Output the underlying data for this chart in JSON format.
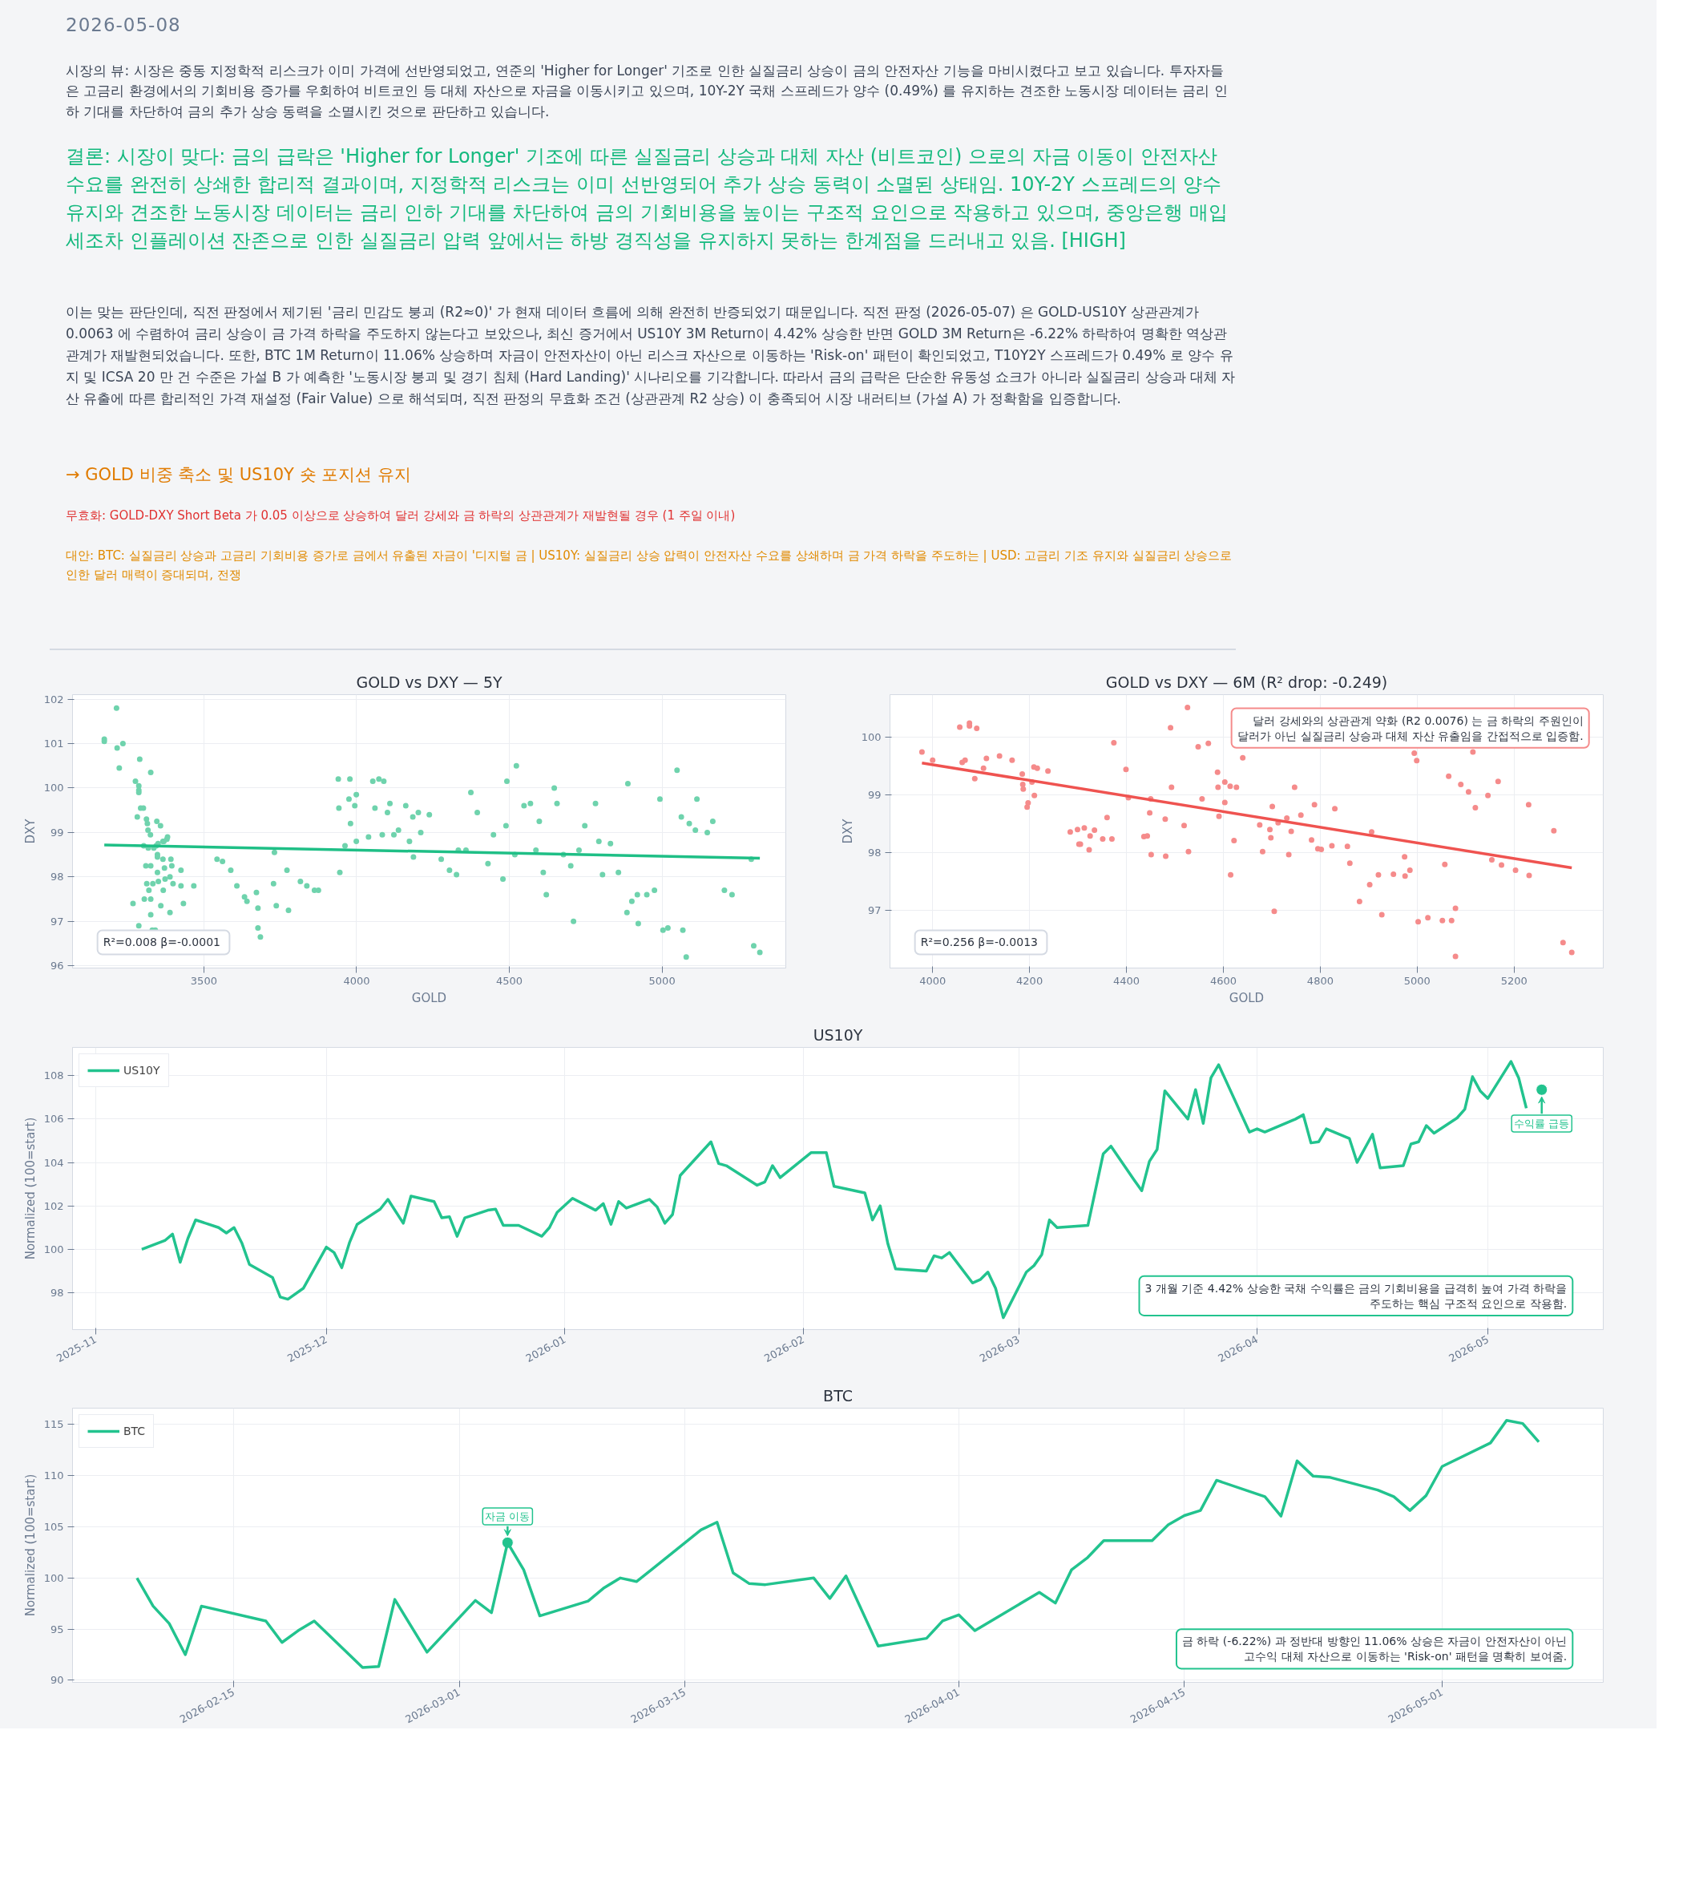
{
  "chart_data": [
    {
      "type": "other",
      "title": "2026-05-08",
      "annotations": [
        "시장의 뷰: 시장은 중동 지정학적 리스크가 이미 가격에 선반영되었고, 연준의 'Higher for Longer' 기조로 인한 실질금리 상승이 금의 안전자산 기능을 마비시켰다고 보고 있습니다. 투자자들은 고금리 환경에서의 기회비용 증가를 우회하여 비트코인 등 대체 자산으로 자금을 이동시키고 있으며, 10Y-2Y 국채 스프레드가 양수 (0.49%) 를 유지하는 견조한 노동시장 데이터는 금리 인하 기대를 차단하여 금의 추가 상승 동력을 소멸시킨 것으로 판단하고 있습니다.",
        "결론: 시장이 맞다: 금의 급락은 'Higher for Longer' 기조에 따른 실질금리 상승과 대체 자산 (비트코인) 으로의 자금 이동이 안전자산 수요를 완전히 상쇄한 합리적 결과이며, 지정학적 리스크는 이미 선반영되어 추가 상승 동력이 소멸된 상태임. 10Y-2Y 스프레드의 양수 유지와 견조한 노동시장 데이터는 금리 인하 기대를 차단하여 금의 기회비용을 높이는 구조적 요인으로 작용하고 있으며, 중앙은행 매입세조차 인플레이션 잔존으로 인한 실질금리 압력 앞에서는 하방 경직성을 유지하지 못하는 한계점을 드러내고 있음.  [HIGH]",
        "이는 맞는 판단인데, 직전 판정에서 제기된 '금리 민감도 붕괴 (R2≈0)' 가 현재 데이터 흐름에 의해 완전히 반증되었기 때문입니다. 직전 판정 (2026-05-07) 은 GOLD-US10Y 상관관계가 0.0063 에 수렴하여 금리 상승이 금 가격 하락을 주도하지 않는다고 보았으나, 최신 증거에서 US10Y 3M Return이 4.42% 상승한 반면 GOLD 3M Return은 -6.22% 하락하여 명확한 역상관 관계가 재발현되었습니다. 또한, BTC 1M Return이 11.06% 상승하며 자금이 안전자산이 아닌 리스크 자산으로 이동하는 'Risk-on' 패턴이 확인되었고, T10Y2Y 스프레드가 0.49% 로 양수 유지 및 ICSA 20 만 건 수준은 가설 B 가 예측한 '노동시장 붕괴 및 경기 침체 (Hard Landing)' 시나리오를 기각합니다. 따라서 금의 급락은 단순한 유동성 쇼크가 아니라 실질금리 상승과 대체 자산 유출에 따른 합리적인 가격 재설정 (Fair Value) 으로 해석되며, 직전 판정의 무효화 조건 (상관관계 R2 상승) 이 충족되어 시장 내러티브 (가설 A) 가 정확함을 입증합니다.",
        "→ GOLD 비중 축소 및 US10Y 숏 포지션 유지",
        "무효화: GOLD-DXY Short Beta 가 0.05 이상으로 상승하여 달러 강세와 금 하락의 상관관계가 재발현될 경우 (1 주일 이내)",
        "대안: BTC: 실질금리 상승과 고금리 기회비용 증가로 금에서 유출된 자금이 '디지털 금 | US10Y: 실질금리 상승 압력이 안전자산 수요를 상쇄하며 금 가격 하락을 주도하는  | USD: 고금리 기조 유지와 실질금리 상승으로 인한 달러 매력이 증대되며, 전쟁"
      ]
    },
    {
      "type": "scatter",
      "title": "GOLD vs DXY — 5Y",
      "xlabel": "GOLD",
      "ylabel": "DXY",
      "xlim": [
        3070,
        5405
      ],
      "ylim": [
        95.95,
        102.1
      ],
      "xticks": [
        3500,
        4000,
        4500,
        5000
      ],
      "yticks": [
        96,
        97,
        98,
        99,
        100,
        101,
        102
      ],
      "grid": true,
      "annotations": [
        "R²=0.008  β=-0.0001"
      ],
      "series": [
        {
          "type": "scatter",
          "marker": "circle",
          "color": "#6fd3ad",
          "x": [
            3174,
            3174,
            3214,
            3216,
            3223,
            3235,
            3268,
            3276,
            3282,
            3287,
            3287,
            3287,
            3287,
            3290,
            3293,
            3302,
            3303,
            3305,
            3310,
            3312,
            3313,
            3315,
            3317,
            3318,
            3320,
            3325,
            3326,
            3326,
            3326,
            3326,
            3331,
            3333,
            3336,
            3341,
            3344,
            3346,
            3348,
            3348,
            3348,
            3350,
            3351,
            3358,
            3359,
            3366,
            3366,
            3367,
            3369,
            3371,
            3373,
            3379,
            3381,
            3389,
            3389,
            3392,
            3395,
            3399,
            3425,
            3425,
            3433,
            3467,
            3543,
            3561,
            3588,
            3608,
            3633,
            3641,
            3672,
            3677,
            3677,
            3685,
            3728,
            3731,
            3737,
            3772,
            3777,
            3816,
            3837,
            3862,
            3875,
            3940,
            3942,
            3945,
            3962,
            3975,
            3978,
            3980,
            3994,
            3999,
            3999,
            4039,
            4053,
            4060,
            4073,
            4084,
            4089,
            4101,
            4109,
            4122,
            4137,
            4161,
            4173,
            4184,
            4186,
            4202,
            4210,
            4238,
            4277,
            4304,
            4327,
            4333,
            4358,
            4374,
            4395,
            4430,
            4448,
            4479,
            4489,
            4492,
            4518,
            4523,
            4548,
            4569,
            4587,
            4598,
            4611,
            4621,
            4647,
            4656,
            4677,
            4701,
            4710,
            4728,
            4747,
            4782,
            4793,
            4805,
            4831,
            4857,
            4885,
            4888,
            4901,
            4919,
            4922,
            4950,
            4975,
            4993,
            5003,
            5019,
            5049,
            5063,
            5068,
            5079,
            5089,
            5109,
            5114,
            5148,
            5166,
            5204,
            5229,
            5292,
            5300,
            5320
          ],
          "values": [
            101.1,
            101.05,
            101.8,
            100.9,
            100.45,
            101.0,
            97.4,
            100.15,
            99.35,
            100.05,
            99.95,
            99.9,
            96.9,
            100.65,
            99.55,
            99.55,
            98.7,
            97.5,
            98.25,
            99.3,
            97.85,
            99.2,
            99.05,
            98.65,
            97.7,
            98.95,
            100.35,
            98.25,
            97.5,
            97.15,
            96.8,
            97.85,
            98.65,
            96.8,
            98.7,
            99.25,
            98.5,
            98.45,
            98.1,
            98.75,
            97.9,
            99.15,
            97.35,
            98.8,
            98.4,
            97.7,
            98.8,
            98.2,
            97.95,
            98.85,
            98.9,
            98.0,
            97.2,
            98.4,
            98.25,
            97.85,
            98.15,
            97.8,
            97.4,
            97.8,
            98.4,
            98.35,
            98.15,
            97.8,
            97.55,
            97.45,
            97.65,
            96.85,
            97.3,
            96.65,
            97.85,
            98.55,
            97.35,
            98.15,
            97.25,
            97.9,
            97.8,
            97.7,
            97.7,
            100.2,
            99.55,
            98.1,
            98.7,
            99.75,
            100.2,
            99.2,
            99.6,
            98.8,
            99.85,
            98.9,
            100.15,
            99.55,
            100.2,
            98.95,
            100.15,
            99.45,
            99.65,
            98.95,
            99.05,
            99.6,
            98.8,
            99.35,
            98.45,
            99.45,
            99.0,
            99.4,
            98.4,
            98.15,
            98.05,
            98.6,
            98.6,
            99.9,
            99.45,
            98.3,
            98.95,
            97.95,
            99.15,
            100.15,
            98.5,
            100.5,
            99.6,
            99.65,
            98.6,
            99.25,
            98.1,
            97.6,
            100.0,
            99.65,
            98.5,
            98.25,
            97.0,
            98.6,
            99.15,
            99.65,
            98.8,
            98.05,
            98.75,
            98.1,
            97.2,
            100.1,
            97.45,
            97.6,
            96.95,
            97.6,
            97.7,
            99.75,
            96.8,
            96.85,
            100.4,
            99.35,
            96.8,
            96.2,
            99.2,
            99.05,
            99.75,
            99.0,
            99.25,
            97.7,
            97.6,
            98.4,
            96.45,
            96.3
          ]
        },
        {
          "type": "line",
          "color": "#1fbf86",
          "x": [
            3174,
            5320
          ],
          "values": [
            98.72,
            98.42
          ]
        }
      ]
    },
    {
      "type": "scatter",
      "title": "GOLD vs DXY — 6M (R² drop: -0.249)",
      "xlabel": "GOLD",
      "ylabel": "DXY",
      "xlim": [
        3912,
        5384
      ],
      "ylim": [
        96.01,
        100.73
      ],
      "xticks": [
        4000,
        4200,
        4400,
        4600,
        4800,
        5000,
        5200
      ],
      "yticks": [
        97,
        98,
        99,
        100
      ],
      "grid": true,
      "annotations": [
        "R²=0.256  β=-0.0013",
        "달러 강세와의 상관관계 약화 (R2 0.0076) 는 금 하락의 주원인이\n달러가 아닌 실질금리 상승과 대체 자산 유출임을 간접적으로 입증함."
      ],
      "series": [
        {
          "type": "scatter",
          "marker": "circle",
          "color": "#f58b8b",
          "x": [
            3978,
            4000,
            4056,
            4061,
            4067,
            4076,
            4076,
            4087,
            4091,
            4105,
            4111,
            4138,
            4164,
            4185,
            4186,
            4187,
            4195,
            4197,
            4205,
            4209,
            4210,
            4216,
            4238,
            4284,
            4299,
            4302,
            4305,
            4313,
            4323,
            4325,
            4334,
            4351,
            4360,
            4370,
            4374,
            4399,
            4404,
            4436,
            4443,
            4448,
            4450,
            4451,
            4480,
            4481,
            4491,
            4493,
            4519,
            4526,
            4528,
            4548,
            4556,
            4569,
            4588,
            4589,
            4591,
            4603,
            4603,
            4614,
            4615,
            4622,
            4627,
            4640,
            4675,
            4681,
            4696,
            4698,
            4701,
            4705,
            4713,
            4731,
            4735,
            4740,
            4747,
            4760,
            4782,
            4788,
            4795,
            4802,
            4824,
            4830,
            4856,
            4861,
            4881,
            4902,
            4906,
            4920,
            4927,
            4951,
            4974,
            4975,
            4985,
            4994,
            4999,
            5002,
            5022,
            5052,
            5057,
            5065,
            5071,
            5079,
            5079,
            5090,
            5106,
            5115,
            5120,
            5146,
            5154,
            5167,
            5174,
            5203,
            5230,
            5231,
            5282,
            5301,
            5319
          ],
          "values": [
            99.74,
            99.6,
            100.17,
            99.56,
            99.6,
            100.24,
            100.19,
            99.28,
            100.15,
            99.46,
            99.63,
            99.67,
            99.6,
            99.36,
            99.18,
            99.1,
            98.79,
            98.86,
            99.22,
            99.48,
            98.99,
            99.46,
            99.41,
            98.36,
            98.4,
            98.15,
            98.15,
            98.43,
            98.05,
            98.29,
            98.39,
            98.24,
            98.61,
            98.24,
            99.9,
            99.44,
            98.95,
            98.28,
            98.29,
            98.69,
            98.93,
            97.97,
            98.58,
            97.94,
            100.16,
            99.13,
            98.47,
            100.51,
            98.02,
            99.83,
            98.93,
            99.89,
            99.39,
            99.13,
            98.63,
            98.87,
            99.22,
            99.15,
            97.62,
            98.21,
            99.13,
            99.64,
            98.48,
            98.02,
            98.4,
            98.26,
            98.8,
            96.99,
            98.52,
            98.6,
            97.97,
            98.37,
            99.13,
            98.65,
            98.22,
            98.83,
            98.07,
            98.06,
            98.12,
            98.76,
            98.11,
            97.82,
            97.16,
            97.45,
            98.36,
            97.62,
            96.93,
            97.63,
            97.93,
            97.6,
            97.7,
            99.72,
            99.59,
            96.81,
            96.88,
            96.83,
            97.8,
            99.32,
            96.83,
            97.04,
            96.21,
            99.18,
            99.05,
            99.74,
            98.78,
            98.99,
            97.88,
            99.23,
            97.79,
            97.7,
            98.83,
            97.61,
            98.38,
            96.45,
            96.28
          ]
        },
        {
          "type": "line",
          "color": "#ef5350",
          "x": [
            3978,
            5319
          ],
          "values": [
            99.55,
            97.74
          ]
        }
      ]
    },
    {
      "type": "line",
      "title": "US10Y",
      "ylabel": "Normalized (100=start)",
      "xlim": [
        "2025-10-29",
        "2026-05-16"
      ],
      "ylim": [
        96.3,
        109.3
      ],
      "xticks": [
        {
          "value": "2025-11-01",
          "label": "2025-11"
        },
        {
          "value": "2025-12-01",
          "label": "2025-12"
        },
        {
          "value": "2026-01-01",
          "label": "2026-01"
        },
        {
          "value": "2026-02-01",
          "label": "2026-02"
        },
        {
          "value": "2026-03-01",
          "label": "2026-03"
        },
        {
          "value": "2026-04-01",
          "label": "2026-04"
        },
        {
          "value": "2026-05-01",
          "label": "2026-05"
        }
      ],
      "yticks": [
        98,
        100,
        102,
        104,
        106,
        108
      ],
      "grid": true,
      "legend": "top left",
      "annotations": [
        "3 개월 기준 4.42% 상승한 국채 수익률은 금의 기회비용을 급격히 높여 가격 하락을\n주도하는 핵심 구조적 요인으로 작용함.",
        {
          "text": "수익률 급등",
          "x": "2026-05-08",
          "y": 107.35
        }
      ],
      "series": [
        {
          "type": "scatter",
          "marker": "circle",
          "color": "#22c38e",
          "x": [
            "2026-05-08"
          ],
          "values": [
            107.35
          ]
        },
        {
          "name": "US10Y",
          "color": "#22c38e",
          "x": [
            "2025-11-07",
            "2025-11-10",
            "2025-11-11",
            "2025-11-12",
            "2025-11-13",
            "2025-11-14",
            "2025-11-17",
            "2025-11-18",
            "2025-11-19",
            "2025-11-20",
            "2025-11-21",
            "2025-11-24",
            "2025-11-25",
            "2025-11-26",
            "2025-11-28",
            "2025-12-01",
            "2025-12-02",
            "2025-12-03",
            "2025-12-04",
            "2025-12-05",
            "2025-12-08",
            "2025-12-09",
            "2025-12-11",
            "2025-12-12",
            "2025-12-15",
            "2025-12-16",
            "2025-12-17",
            "2025-12-18",
            "2025-12-19",
            "2025-12-22",
            "2025-12-23",
            "2025-12-24",
            "2025-12-26",
            "2025-12-29",
            "2025-12-30",
            "2025-12-31",
            "2026-01-02",
            "2026-01-05",
            "2026-01-06",
            "2026-01-07",
            "2026-01-08",
            "2026-01-09",
            "2026-01-12",
            "2026-01-13",
            "2026-01-14",
            "2026-01-15",
            "2026-01-16",
            "2026-01-20",
            "2026-01-21",
            "2026-01-22",
            "2026-01-26",
            "2026-01-27",
            "2026-01-28",
            "2026-01-29",
            "2026-02-02",
            "2026-02-04",
            "2026-02-05",
            "2026-02-09",
            "2026-02-10",
            "2026-02-11",
            "2026-02-12",
            "2026-02-13",
            "2026-02-17",
            "2026-02-18",
            "2026-02-19",
            "2026-02-20",
            "2026-02-23",
            "2026-02-24",
            "2026-02-25",
            "2026-02-26",
            "2026-02-27",
            "2026-03-02",
            "2026-03-03",
            "2026-03-04",
            "2026-03-05",
            "2026-03-06",
            "2026-03-10",
            "2026-03-12",
            "2026-03-13",
            "2026-03-16",
            "2026-03-17",
            "2026-03-18",
            "2026-03-19",
            "2026-03-20",
            "2026-03-23",
            "2026-03-24",
            "2026-03-25",
            "2026-03-26",
            "2026-03-27",
            "2026-03-31",
            "2026-04-01",
            "2026-04-02",
            "2026-04-06",
            "2026-04-07",
            "2026-04-08",
            "2026-04-09",
            "2026-04-10",
            "2026-04-13",
            "2026-04-14",
            "2026-04-16",
            "2026-04-17",
            "2026-04-20",
            "2026-04-21",
            "2026-04-22",
            "2026-04-23",
            "2026-04-24",
            "2026-04-27",
            "2026-04-28",
            "2026-04-29",
            "2026-04-30",
            "2026-05-01",
            "2026-05-04",
            "2026-05-05",
            "2026-05-06"
          ],
          "values": [
            100.0,
            100.4,
            100.7,
            99.4,
            100.5,
            101.35,
            101.0,
            100.75,
            101.0,
            100.3,
            99.3,
            98.7,
            97.8,
            97.7,
            98.2,
            100.1,
            99.85,
            99.15,
            100.3,
            101.15,
            101.85,
            102.3,
            101.2,
            102.45,
            102.2,
            101.45,
            101.5,
            100.6,
            101.45,
            101.8,
            101.85,
            101.1,
            101.1,
            100.6,
            101.0,
            101.7,
            102.35,
            101.8,
            102.1,
            101.15,
            102.2,
            101.9,
            102.3,
            101.95,
            101.2,
            101.6,
            103.4,
            104.95,
            103.95,
            103.85,
            102.95,
            103.1,
            103.85,
            103.3,
            104.45,
            104.45,
            102.9,
            102.6,
            101.35,
            102.0,
            100.25,
            99.1,
            99.0,
            99.7,
            99.6,
            99.85,
            98.45,
            98.6,
            98.95,
            98.2,
            96.85,
            98.95,
            99.25,
            99.75,
            101.35,
            101.0,
            101.1,
            104.4,
            104.75,
            103.2,
            102.7,
            104.05,
            104.6,
            107.3,
            106.0,
            107.35,
            105.8,
            107.9,
            108.5,
            105.4,
            105.55,
            105.4,
            106.0,
            106.2,
            104.9,
            104.95,
            105.55,
            105.1,
            104.0,
            105.3,
            103.75,
            103.85,
            104.85,
            104.95,
            105.7,
            105.35,
            106.05,
            106.45,
            107.95,
            107.3,
            106.95,
            108.65,
            107.9,
            106.5
          ]
        }
      ]
    },
    {
      "type": "line",
      "title": "BTC",
      "ylabel": "Normalized (100=start)",
      "xlim": [
        "2026-02-05",
        "2026-05-11"
      ],
      "ylim": [
        89.8,
        116.6
      ],
      "xticks": [
        "2026-02-15",
        "2026-03-01",
        "2026-03-15",
        "2026-04-01",
        "2026-04-15",
        "2026-05-01"
      ],
      "yticks": [
        90,
        95,
        100,
        105,
        110,
        115
      ],
      "grid": true,
      "legend": "top left",
      "annotations": [
        "금 하락 (-6.22%) 과 정반대 방향인 11.06% 상승은 자금이 안전자산이 아닌\n고수익 대체 자산으로 이동하는 'Risk-on' 패턴을 명확히 보여줌.",
        {
          "text": "자금 이동",
          "x": "2026-03-04",
          "y": 103.45
        }
      ],
      "series": [
        {
          "type": "scatter",
          "marker": "circle",
          "color": "#22c38e",
          "x": [
            "2026-03-04"
          ],
          "values": [
            103.45
          ]
        },
        {
          "name": "BTC",
          "color": "#22c38e",
          "x": [
            "2026-02-09",
            "2026-02-10",
            "2026-02-11",
            "2026-02-12",
            "2026-02-13",
            "2026-02-17",
            "2026-02-18",
            "2026-02-19",
            "2026-02-20",
            "2026-02-23",
            "2026-02-24",
            "2026-02-25",
            "2026-02-27",
            "2026-03-02",
            "2026-03-03",
            "2026-03-04",
            "2026-03-05",
            "2026-03-06",
            "2026-03-09",
            "2026-03-10",
            "2026-03-11",
            "2026-03-12",
            "2026-03-13",
            "2026-03-16",
            "2026-03-17",
            "2026-03-18",
            "2026-03-19",
            "2026-03-20",
            "2026-03-23",
            "2026-03-24",
            "2026-03-25",
            "2026-03-27",
            "2026-03-30",
            "2026-03-31",
            "2026-04-01",
            "2026-04-02",
            "2026-04-06",
            "2026-04-07",
            "2026-04-08",
            "2026-04-09",
            "2026-04-10",
            "2026-04-13",
            "2026-04-14",
            "2026-04-15",
            "2026-04-16",
            "2026-04-17",
            "2026-04-20",
            "2026-04-21",
            "2026-04-22",
            "2026-04-23",
            "2026-04-24",
            "2026-04-27",
            "2026-04-28",
            "2026-04-29",
            "2026-04-30",
            "2026-05-01",
            "2026-05-04",
            "2026-05-05",
            "2026-05-06",
            "2026-05-07"
          ],
          "values": [
            100.0,
            97.25,
            95.55,
            92.5,
            97.25,
            95.8,
            93.7,
            94.85,
            95.8,
            91.25,
            91.35,
            97.9,
            92.75,
            97.8,
            96.6,
            103.45,
            100.8,
            96.3,
            97.75,
            99.05,
            100.0,
            99.65,
            100.9,
            104.7,
            105.45,
            100.5,
            99.45,
            99.35,
            100.0,
            98.0,
            100.2,
            93.35,
            94.1,
            95.8,
            96.4,
            94.85,
            98.6,
            97.55,
            100.8,
            102.0,
            103.65,
            103.65,
            105.2,
            106.1,
            106.6,
            109.55,
            107.95,
            106.05,
            111.45,
            109.95,
            109.85,
            108.6,
            107.95,
            106.6,
            108.05,
            110.9,
            113.2,
            115.4,
            115.1,
            113.3
          ]
        }
      ]
    }
  ]
}
